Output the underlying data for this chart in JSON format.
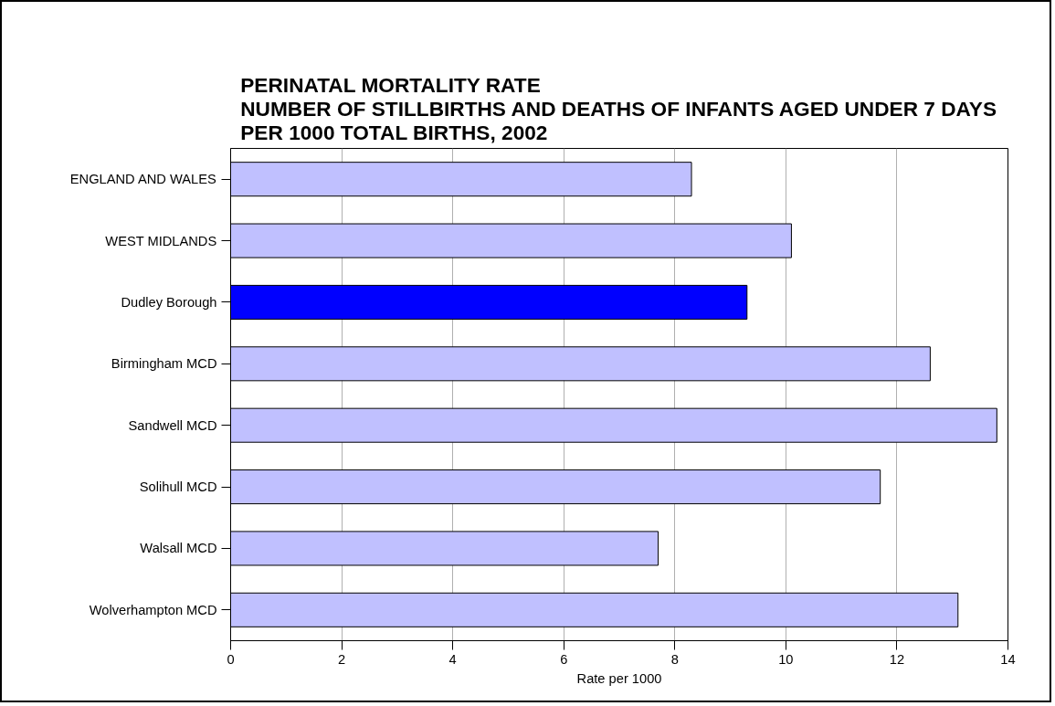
{
  "chart_data": {
    "type": "bar",
    "orientation": "horizontal",
    "title": "PERINATAL MORTALITY RATE \nNUMBER OF STILLBIRTHS AND DEATHS OF INFANTS AGED UNDER 7 DAYS\nPER 1000 TOTAL BIRTHS, 2002",
    "xlabel": "Rate per 1000",
    "categories": [
      "ENGLAND AND WALES",
      "WEST MIDLANDS",
      "Dudley Borough",
      "Birmingham MCD",
      "Sandwell MCD",
      "Solihull MCD",
      "Walsall MCD",
      "Wolverhampton MCD"
    ],
    "values": [
      8.3,
      10.1,
      9.3,
      12.6,
      13.8,
      11.7,
      7.7,
      13.1
    ],
    "colors": [
      "#c0c0ff",
      "#c0c0ff",
      "#0000ff",
      "#c0c0ff",
      "#c0c0ff",
      "#c0c0ff",
      "#c0c0ff",
      "#c0c0ff"
    ],
    "xlim": [
      0,
      14
    ],
    "xticks": [
      0,
      2,
      4,
      6,
      8,
      10,
      12,
      14
    ],
    "grid": "x"
  }
}
